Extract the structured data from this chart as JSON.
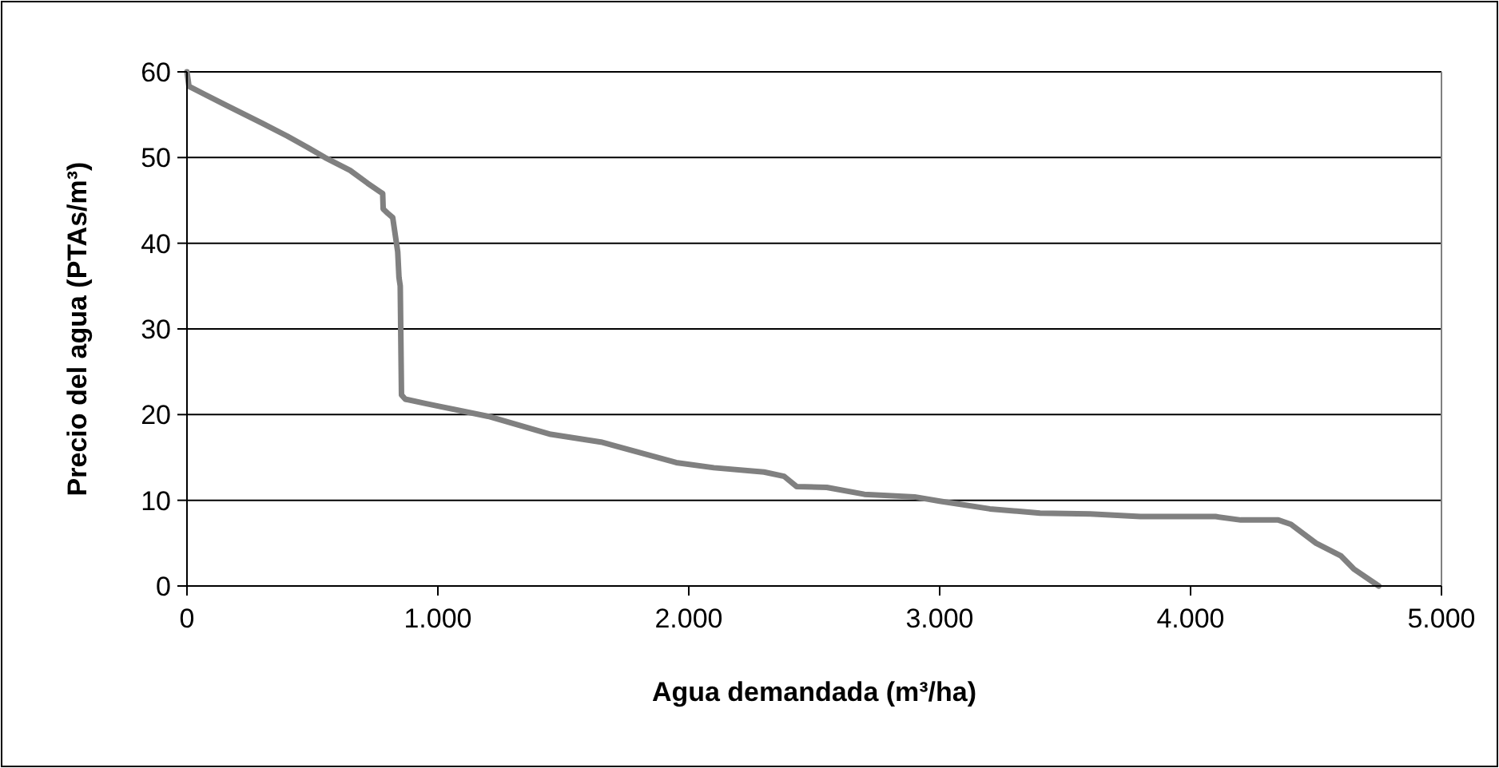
{
  "chart_data": {
    "type": "line",
    "xlabel": "Agua demandada (m³/ha)",
    "ylabel": "Precio del agua (PTAs/m³)",
    "xlim": [
      0,
      5000
    ],
    "ylim": [
      0,
      60
    ],
    "xticks": [
      0,
      {
        "value": 1000,
        "label": "1.000"
      },
      {
        "value": 2000,
        "label": "2.000"
      },
      {
        "value": 3000,
        "label": "3.000"
      },
      {
        "value": 4000,
        "label": "4.000"
      },
      {
        "value": 5000,
        "label": "5.000"
      }
    ],
    "yticks": [
      0,
      10,
      20,
      30,
      40,
      50,
      60
    ],
    "grid": "y",
    "marker": "none",
    "line_style": "solid",
    "series": [
      {
        "color": "#808080",
        "x": [
          0,
          8,
          150,
          300,
          400,
          480,
          550,
          650,
          720,
          770,
          780,
          782,
          800,
          820,
          830,
          840,
          845,
          850,
          855,
          870,
          950,
          1000,
          1200,
          1450,
          1650,
          1950,
          2100,
          2300,
          2380,
          2430,
          2550,
          2700,
          2900,
          3000,
          3200,
          3400,
          3600,
          3800,
          4100,
          4200,
          4350,
          4400,
          4500,
          4600,
          4650,
          4750
        ],
        "values": [
          60,
          58.3,
          56.2,
          54,
          52.5,
          51.2,
          50,
          48.5,
          47,
          46,
          45.8,
          44,
          43.5,
          43,
          41,
          39,
          36,
          35,
          22.3,
          21.8,
          21.3,
          21,
          19.8,
          17.7,
          16.8,
          14.4,
          13.8,
          13.3,
          12.8,
          11.6,
          11.5,
          10.7,
          10.4,
          9.9,
          9,
          8.5,
          8.4,
          8.1,
          8.1,
          7.7,
          7.7,
          7.2,
          5,
          3.5,
          2,
          0
        ]
      }
    ]
  }
}
